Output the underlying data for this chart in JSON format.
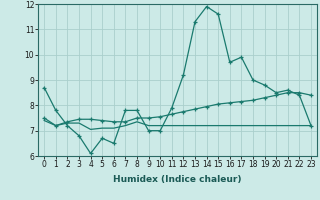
{
  "xlabel": "Humidex (Indice chaleur)",
  "x": [
    0,
    1,
    2,
    3,
    4,
    5,
    6,
    7,
    8,
    9,
    10,
    11,
    12,
    13,
    14,
    15,
    16,
    17,
    18,
    19,
    20,
    21,
    22,
    23
  ],
  "line1": [
    8.7,
    7.8,
    7.2,
    6.8,
    6.1,
    6.7,
    6.5,
    7.8,
    7.8,
    7.0,
    7.0,
    7.9,
    9.2,
    11.3,
    11.9,
    11.6,
    9.7,
    9.9,
    9.0,
    8.8,
    8.5,
    8.6,
    8.4,
    7.2
  ],
  "line2": [
    7.5,
    7.2,
    7.35,
    7.45,
    7.45,
    7.4,
    7.35,
    7.35,
    7.5,
    7.5,
    7.55,
    7.65,
    7.75,
    7.85,
    7.95,
    8.05,
    8.1,
    8.15,
    8.2,
    8.3,
    8.4,
    8.5,
    8.5,
    8.4
  ],
  "line3": [
    7.4,
    7.2,
    7.3,
    7.3,
    7.05,
    7.1,
    7.1,
    7.2,
    7.35,
    7.2,
    7.2,
    7.2,
    7.2,
    7.2,
    7.2,
    7.2,
    7.2,
    7.2,
    7.2,
    7.2,
    7.2,
    7.2,
    7.2,
    7.2
  ],
  "color": "#1a7a6e",
  "bg_color": "#cceae7",
  "grid_color": "#aacfcc",
  "ylim": [
    6,
    12
  ],
  "xlim": [
    -0.5,
    23.5
  ],
  "yticks": [
    6,
    7,
    8,
    9,
    10,
    11,
    12
  ],
  "xticks": [
    0,
    1,
    2,
    3,
    4,
    5,
    6,
    7,
    8,
    9,
    10,
    11,
    12,
    13,
    14,
    15,
    16,
    17,
    18,
    19,
    20,
    21,
    22,
    23
  ],
  "tick_fontsize": 5.5,
  "xlabel_fontsize": 6.5
}
